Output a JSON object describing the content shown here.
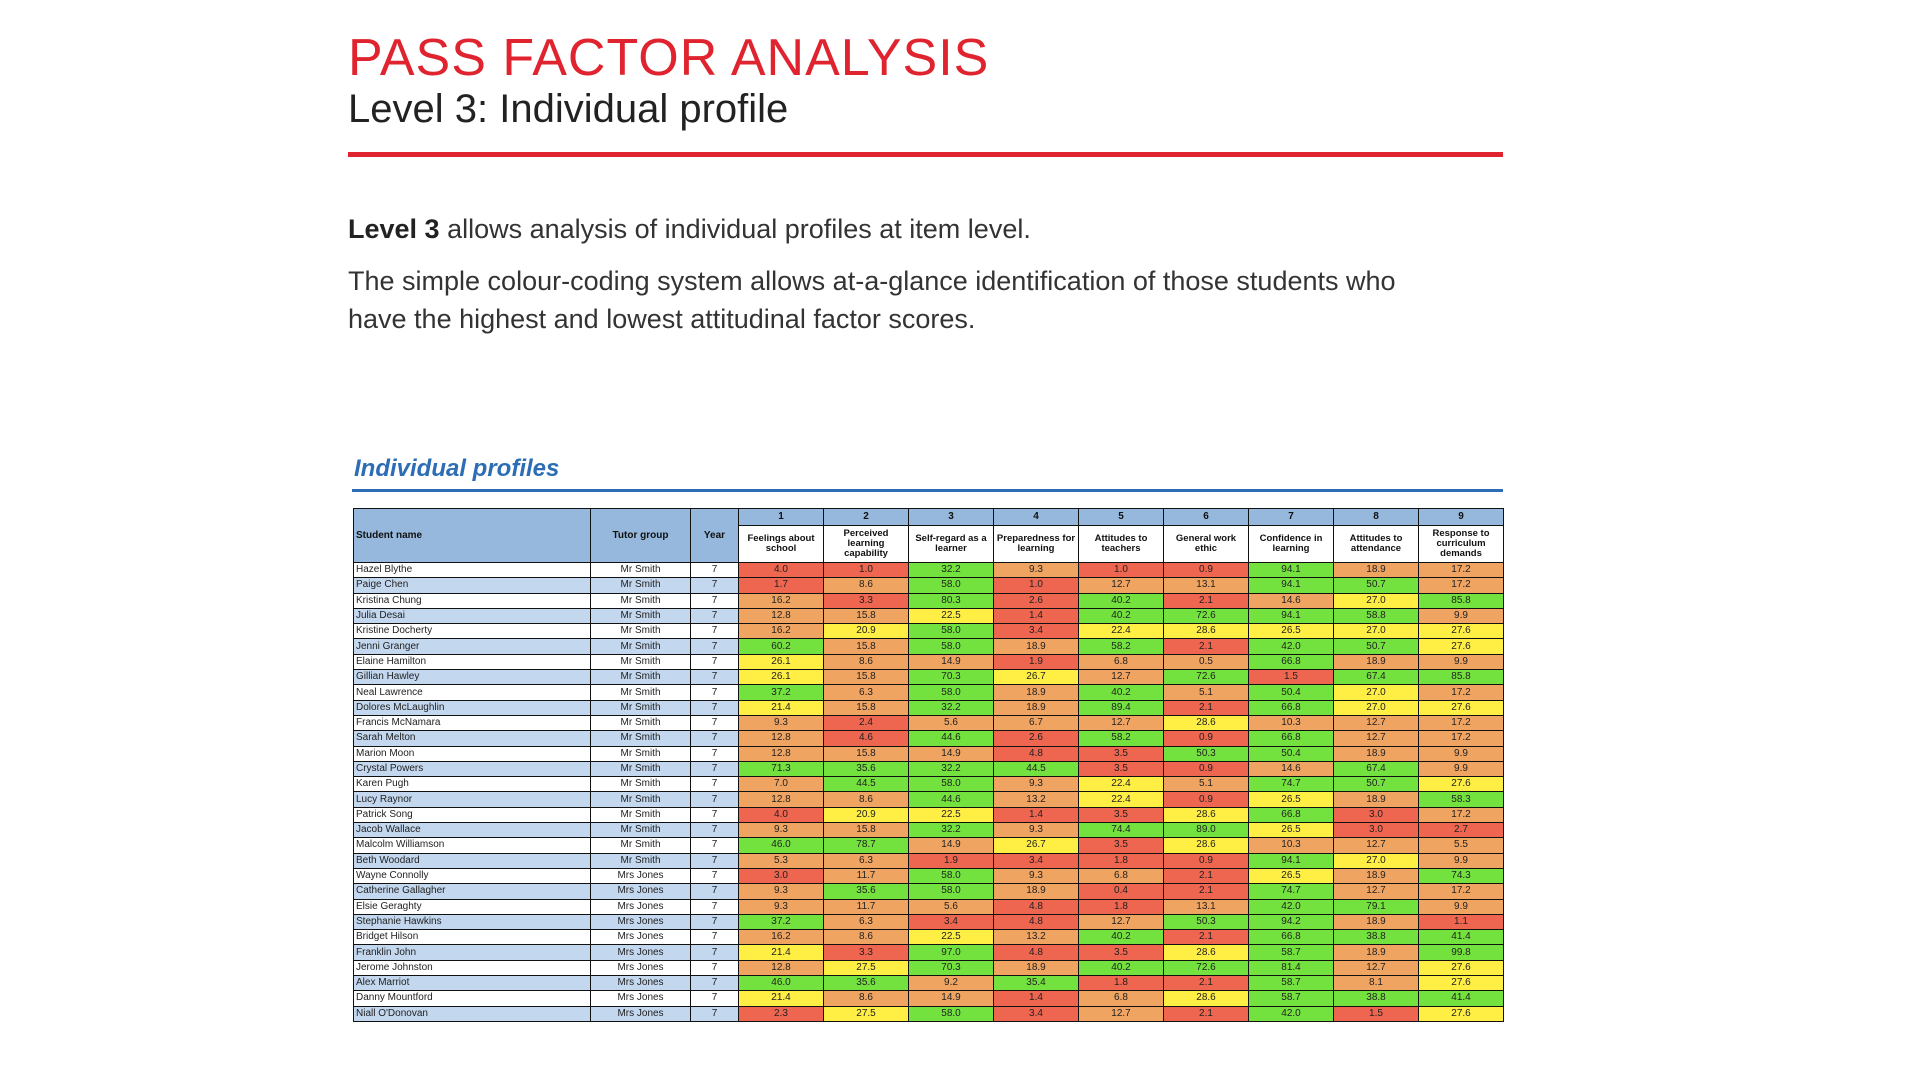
{
  "header": {
    "title": "PASS FACTOR ANALYSIS",
    "subtitle": "Level 3: Individual profile"
  },
  "intro": {
    "bold": "Level 3",
    "text1": " allows analysis of individual profiles at item level.",
    "text2": "The simple colour-coding system allows at-a-glance identification of those students who have the highest and lowest attitudinal factor scores."
  },
  "section_title": "Individual profiles",
  "colors": {
    "title": "#E0242F",
    "section": "#2C6DB5",
    "header": "#95B8DC",
    "row_alt": "#C3D7EE",
    "red": "#EE6550",
    "orange": "#F0A462",
    "yellow": "#FFEE44",
    "green": "#74E23E"
  },
  "table": {
    "col_student": "Student name",
    "col_tutor": "Tutor group",
    "col_year": "Year",
    "factors": [
      {
        "num": "1",
        "label": "Feelings about school"
      },
      {
        "num": "2",
        "label": "Perceived learning capability"
      },
      {
        "num": "3",
        "label": "Self-regard as a learner"
      },
      {
        "num": "4",
        "label": "Preparedness for learning"
      },
      {
        "num": "5",
        "label": "Attitudes to teachers"
      },
      {
        "num": "6",
        "label": "General work ethic"
      },
      {
        "num": "7",
        "label": "Confidence in learning"
      },
      {
        "num": "8",
        "label": "Attitudes to attendance"
      },
      {
        "num": "9",
        "label": "Response to curriculum demands"
      }
    ],
    "rows": [
      {
        "name": "Hazel Blythe",
        "tutor": "Mr Smith",
        "year": "7",
        "scores": [
          "4.0",
          "1.0",
          "32.2",
          "9.3",
          "1.0",
          "0.9",
          "94.1",
          "18.9",
          "17.2"
        ],
        "bands": "RRGORRGOO"
      },
      {
        "name": "Paige Chen",
        "tutor": "Mr Smith",
        "year": "7",
        "scores": [
          "1.7",
          "8.6",
          "58.0",
          "1.0",
          "12.7",
          "13.1",
          "94.1",
          "50.7",
          "17.2"
        ],
        "bands": "ROGROOGGO"
      },
      {
        "name": "Kristina Chung",
        "tutor": "Mr Smith",
        "year": "7",
        "scores": [
          "16.2",
          "3.3",
          "80.3",
          "2.6",
          "40.2",
          "2.1",
          "14.6",
          "27.0",
          "85.8"
        ],
        "bands": "ORGRGROYG"
      },
      {
        "name": "Julia Desai",
        "tutor": "Mr Smith",
        "year": "7",
        "scores": [
          "12.8",
          "15.8",
          "22.5",
          "1.4",
          "40.2",
          "72.6",
          "94.1",
          "58.8",
          "9.9"
        ],
        "bands": "OOYRGGGGO"
      },
      {
        "name": "Kristine Docherty",
        "tutor": "Mr Smith",
        "year": "7",
        "scores": [
          "16.2",
          "20.9",
          "58.0",
          "3.4",
          "22.4",
          "28.6",
          "26.5",
          "27.0",
          "27.6"
        ],
        "bands": "OYGRYYYYY"
      },
      {
        "name": "Jenni Granger",
        "tutor": "Mr Smith",
        "year": "7",
        "scores": [
          "60.2",
          "15.8",
          "58.0",
          "18.9",
          "58.2",
          "2.1",
          "42.0",
          "50.7",
          "27.6"
        ],
        "bands": "GOGOGRGGY"
      },
      {
        "name": "Elaine Hamilton",
        "tutor": "Mr Smith",
        "year": "7",
        "scores": [
          "26.1",
          "8.6",
          "14.9",
          "1.9",
          "6.8",
          "0.5",
          "66.8",
          "18.9",
          "9.9"
        ],
        "bands": "YOOROOGOO"
      },
      {
        "name": "Gillian Hawley",
        "tutor": "Mr Smith",
        "year": "7",
        "scores": [
          "26.1",
          "15.8",
          "70.3",
          "26.7",
          "12.7",
          "72.6",
          "1.5",
          "67.4",
          "85.8"
        ],
        "bands": "YOGYOGRGG"
      },
      {
        "name": "Neal Lawrence",
        "tutor": "Mr Smith",
        "year": "7",
        "scores": [
          "37.2",
          "6.3",
          "58.0",
          "18.9",
          "40.2",
          "5.1",
          "50.4",
          "27.0",
          "17.2"
        ],
        "bands": "GOGOGOGYO"
      },
      {
        "name": "Dolores McLaughlin",
        "tutor": "Mr Smith",
        "year": "7",
        "scores": [
          "21.4",
          "15.8",
          "32.2",
          "18.9",
          "89.4",
          "2.1",
          "66.8",
          "27.0",
          "27.6"
        ],
        "bands": "YOGOGRGYY"
      },
      {
        "name": "Francis McNamara",
        "tutor": "Mr Smith",
        "year": "7",
        "scores": [
          "9.3",
          "2.4",
          "5.6",
          "6.7",
          "12.7",
          "28.6",
          "10.3",
          "12.7",
          "17.2"
        ],
        "bands": "OROOOYOOO"
      },
      {
        "name": "Sarah Melton",
        "tutor": "Mr Smith",
        "year": "7",
        "scores": [
          "12.8",
          "4.6",
          "44.6",
          "2.6",
          "58.2",
          "0.9",
          "66.8",
          "12.7",
          "17.2"
        ],
        "bands": "ORGRGRGOO"
      },
      {
        "name": "Marion Moon",
        "tutor": "Mr Smith",
        "year": "7",
        "scores": [
          "12.8",
          "15.8",
          "14.9",
          "4.8",
          "3.5",
          "50.3",
          "50.4",
          "18.9",
          "9.9"
        ],
        "bands": "OOORRGGOO"
      },
      {
        "name": "Crystal Powers",
        "tutor": "Mr Smith",
        "year": "7",
        "scores": [
          "71.3",
          "35.6",
          "32.2",
          "44.5",
          "3.5",
          "0.9",
          "14.6",
          "67.4",
          "9.9"
        ],
        "bands": "GGGGRROGO"
      },
      {
        "name": "Karen Pugh",
        "tutor": "Mr Smith",
        "year": "7",
        "scores": [
          "7.0",
          "44.5",
          "58.0",
          "9.3",
          "22.4",
          "5.1",
          "74.7",
          "50.7",
          "27.6"
        ],
        "bands": "OGGOYOGGY"
      },
      {
        "name": "Lucy Raynor",
        "tutor": "Mr Smith",
        "year": "7",
        "scores": [
          "12.8",
          "8.6",
          "44.6",
          "13.2",
          "22.4",
          "0.9",
          "26.5",
          "18.9",
          "58.3"
        ],
        "bands": "OOGOYRYOG"
      },
      {
        "name": "Patrick Song",
        "tutor": "Mr Smith",
        "year": "7",
        "scores": [
          "4.0",
          "20.9",
          "22.5",
          "1.4",
          "3.5",
          "28.6",
          "66.8",
          "3.0",
          "17.2"
        ],
        "bands": "RYYRRYGRO"
      },
      {
        "name": "Jacob Wallace",
        "tutor": "Mr Smith",
        "year": "7",
        "scores": [
          "9.3",
          "15.8",
          "32.2",
          "9.3",
          "74.4",
          "89.0",
          "26.5",
          "3.0",
          "2.7"
        ],
        "bands": "OOGOGGYRR"
      },
      {
        "name": "Malcolm Williamson",
        "tutor": "Mr Smith",
        "year": "7",
        "scores": [
          "46.0",
          "78.7",
          "14.9",
          "26.7",
          "3.5",
          "28.6",
          "10.3",
          "12.7",
          "5.5"
        ],
        "bands": "GGOYRYOOO"
      },
      {
        "name": "Beth Woodard",
        "tutor": "Mr Smith",
        "year": "7",
        "scores": [
          "5.3",
          "6.3",
          "1.9",
          "3.4",
          "1.8",
          "0.9",
          "94.1",
          "27.0",
          "9.9"
        ],
        "bands": "OORRRRGYO"
      },
      {
        "name": "Wayne Connolly",
        "tutor": "Mrs Jones",
        "year": "7",
        "scores": [
          "3.0",
          "11.7",
          "58.0",
          "9.3",
          "6.8",
          "2.1",
          "26.5",
          "18.9",
          "74.3"
        ],
        "bands": "ROGOORYOG"
      },
      {
        "name": "Catherine Gallagher",
        "tutor": "Mrs Jones",
        "year": "7",
        "scores": [
          "9.3",
          "35.6",
          "58.0",
          "18.9",
          "0.4",
          "2.1",
          "74.7",
          "12.7",
          "17.2"
        ],
        "bands": "OGGORRGOO"
      },
      {
        "name": "Elsie Geraghty",
        "tutor": "Mrs Jones",
        "year": "7",
        "scores": [
          "9.3",
          "11.7",
          "5.6",
          "4.8",
          "1.8",
          "13.1",
          "42.0",
          "79.1",
          "9.9"
        ],
        "bands": "OOORROGGO"
      },
      {
        "name": "Stephanie Hawkins",
        "tutor": "Mrs Jones",
        "year": "7",
        "scores": [
          "37.2",
          "6.3",
          "3.4",
          "4.8",
          "12.7",
          "50.3",
          "94.2",
          "18.9",
          "1.1"
        ],
        "bands": "GORROGGOR"
      },
      {
        "name": "Bridget Hilson",
        "tutor": "Mrs Jones",
        "year": "7",
        "scores": [
          "16.2",
          "8.6",
          "22.5",
          "13.2",
          "40.2",
          "2.1",
          "66.8",
          "38.8",
          "41.4"
        ],
        "bands": "OOYOGRGGG"
      },
      {
        "name": "Franklin John",
        "tutor": "Mrs Jones",
        "year": "7",
        "scores": [
          "21.4",
          "3.3",
          "97.0",
          "4.8",
          "3.5",
          "28.6",
          "58.7",
          "18.9",
          "99.8"
        ],
        "bands": "YRGRRYGOG"
      },
      {
        "name": "Jerome Johnston",
        "tutor": "Mrs Jones",
        "year": "7",
        "scores": [
          "12.8",
          "27.5",
          "70.3",
          "18.9",
          "40.2",
          "72.6",
          "81.4",
          "12.7",
          "27.6"
        ],
        "bands": "OYGOGGGOY"
      },
      {
        "name": "Alex Marriot",
        "tutor": "Mrs Jones",
        "year": "7",
        "scores": [
          "46.0",
          "35.6",
          "9.2",
          "35.4",
          "1.8",
          "2.1",
          "58.7",
          "8.1",
          "27.6"
        ],
        "bands": "GGOGRRGOY"
      },
      {
        "name": "Danny Mountford",
        "tutor": "Mrs Jones",
        "year": "7",
        "scores": [
          "21.4",
          "8.6",
          "14.9",
          "1.4",
          "6.8",
          "28.6",
          "58.7",
          "38.8",
          "41.4"
        ],
        "bands": "YOOROYGGG"
      },
      {
        "name": "Niall O'Donovan",
        "tutor": "Mrs Jones",
        "year": "7",
        "scores": [
          "2.3",
          "27.5",
          "58.0",
          "3.4",
          "12.7",
          "2.1",
          "42.0",
          "1.5",
          "27.6"
        ],
        "bands": "RYGRORGRY"
      }
    ]
  }
}
